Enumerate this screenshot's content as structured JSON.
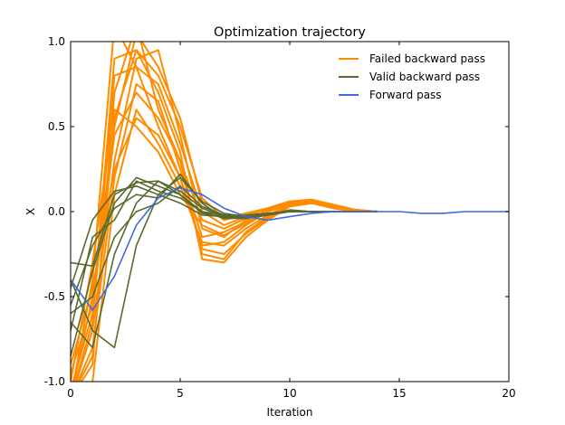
{
  "chart_data": {
    "type": "line",
    "title": "Optimization trajectory",
    "xlabel": "Iteration",
    "ylabel": "X",
    "xlim": [
      0,
      20
    ],
    "ylim": [
      -1.0,
      1.0
    ],
    "xticks": [
      0,
      5,
      10,
      15,
      20
    ],
    "yticks": [
      -1.0,
      -0.5,
      0.0,
      0.5,
      1.0
    ],
    "xtick_labels": [
      "0",
      "5",
      "10",
      "15",
      "20"
    ],
    "ytick_labels": [
      "-1.0",
      "-0.5",
      "0.0",
      "0.5",
      "1.0"
    ],
    "grid": false,
    "legend_position": "top-right",
    "legend": [
      {
        "label": "Failed backward pass",
        "color": "#ff8c00"
      },
      {
        "label": "Valid backward pass",
        "color": "#556b2f"
      },
      {
        "label": "Forward pass",
        "color": "#4169e1"
      }
    ],
    "groups": [
      {
        "name": "Failed backward pass",
        "color": "#ff8c00",
        "series": [
          {
            "x": [
              0,
              1,
              2,
              3,
              4,
              5,
              6,
              7,
              8,
              9,
              10,
              11,
              12,
              13,
              14
            ],
            "values": [
              -1.1,
              -0.5,
              0.5,
              1.05,
              0.85,
              0.55,
              0.05,
              -0.05,
              -0.02,
              0.01,
              0.06,
              0.07,
              0.04,
              0.01,
              0.0
            ]
          },
          {
            "x": [
              0,
              1,
              2,
              3,
              4,
              5,
              6,
              7,
              8,
              9,
              10,
              11,
              12,
              13,
              14
            ],
            "values": [
              -1.1,
              -0.7,
              0.3,
              0.9,
              0.95,
              0.45,
              -0.1,
              -0.15,
              -0.05,
              0.0,
              0.05,
              0.07,
              0.03,
              0.01,
              0.0
            ]
          },
          {
            "x": [
              0,
              1,
              2,
              3,
              4,
              5,
              6,
              7,
              8,
              9,
              10,
              11,
              12,
              13,
              14
            ],
            "values": [
              -1.1,
              -0.9,
              0.7,
              1.1,
              0.6,
              0.3,
              -0.25,
              -0.28,
              -0.12,
              -0.03,
              0.04,
              0.06,
              0.03,
              0.01,
              0.0
            ]
          },
          {
            "x": [
              0,
              1,
              2,
              3,
              4,
              5,
              6,
              7,
              8,
              9,
              10,
              11,
              12,
              13,
              14
            ],
            "values": [
              -1.05,
              -0.6,
              0.9,
              0.95,
              0.7,
              0.35,
              -0.28,
              -0.3,
              -0.15,
              -0.05,
              0.03,
              0.05,
              0.02,
              0.0,
              0.0
            ]
          },
          {
            "x": [
              0,
              1,
              2,
              3,
              4,
              5,
              6,
              7,
              8,
              9,
              10,
              11,
              12,
              13,
              14
            ],
            "values": [
              -1.1,
              -0.4,
              1.1,
              0.85,
              0.5,
              0.2,
              -0.2,
              -0.18,
              -0.08,
              0.0,
              0.05,
              0.07,
              0.04,
              0.01,
              0.0
            ]
          },
          {
            "x": [
              0,
              1,
              2,
              3,
              4,
              5,
              6,
              7,
              8,
              9,
              10,
              11,
              12,
              13,
              14
            ],
            "values": [
              -1.1,
              -0.8,
              0.2,
              0.75,
              0.65,
              0.25,
              -0.15,
              -0.12,
              -0.06,
              0.01,
              0.06,
              0.06,
              0.03,
              0.01,
              0.0
            ]
          },
          {
            "x": [
              0,
              1,
              2,
              3,
              4,
              5,
              6,
              7,
              8,
              9,
              10,
              11,
              12,
              13,
              14
            ],
            "values": [
              -0.95,
              -0.55,
              0.45,
              0.7,
              0.55,
              0.3,
              -0.05,
              -0.1,
              -0.04,
              0.02,
              0.05,
              0.06,
              0.03,
              0.01,
              0.0
            ]
          },
          {
            "x": [
              0,
              1,
              2,
              3,
              4,
              5,
              6,
              7,
              8,
              9,
              10,
              11,
              12,
              13,
              14
            ],
            "values": [
              -1.1,
              -1.0,
              0.1,
              0.6,
              0.4,
              0.15,
              -0.18,
              -0.2,
              -0.1,
              -0.02,
              0.04,
              0.05,
              0.02,
              0.0,
              0.0
            ]
          },
          {
            "x": [
              0,
              1,
              2,
              3,
              4,
              5,
              6,
              7,
              8,
              9,
              10,
              11,
              12,
              13,
              14
            ],
            "values": [
              -1.0,
              -0.3,
              0.6,
              0.5,
              0.35,
              0.1,
              -0.08,
              -0.14,
              -0.07,
              0.0,
              0.04,
              0.05,
              0.02,
              0.0,
              0.0
            ]
          },
          {
            "x": [
              0,
              1,
              2,
              3,
              4,
              5,
              6,
              7,
              8,
              9,
              10,
              11,
              12,
              13,
              14
            ],
            "values": [
              -1.1,
              -0.65,
              0.8,
              0.85,
              0.75,
              0.4,
              0.0,
              -0.08,
              -0.03,
              0.02,
              0.06,
              0.06,
              0.03,
              0.01,
              0.0
            ]
          },
          {
            "x": [
              0,
              1,
              2,
              3,
              4,
              5,
              6,
              7,
              8,
              9,
              10,
              11,
              12,
              13,
              14
            ],
            "values": [
              -0.9,
              -0.45,
              0.25,
              0.55,
              0.45,
              0.2,
              -0.22,
              -0.25,
              -0.13,
              -0.04,
              0.03,
              0.05,
              0.02,
              0.0,
              0.0
            ]
          },
          {
            "x": [
              0,
              1,
              2,
              3,
              4,
              5,
              6,
              7,
              8,
              9,
              10,
              11,
              12,
              13,
              14
            ],
            "values": [
              -1.1,
              -0.85,
              0.55,
              0.95,
              0.8,
              0.5,
              0.08,
              -0.04,
              -0.01,
              0.02,
              0.06,
              0.07,
              0.04,
              0.01,
              0.0
            ]
          }
        ]
      },
      {
        "name": "Valid backward pass",
        "color": "#556b2f",
        "series": [
          {
            "x": [
              0,
              1,
              2,
              3,
              4,
              5,
              6,
              7,
              8,
              9,
              10,
              11,
              12,
              13,
              14
            ],
            "values": [
              -0.3,
              -0.32,
              0.1,
              0.17,
              0.18,
              0.1,
              0.0,
              -0.04,
              -0.03,
              -0.01,
              0.0,
              0.0,
              0.0,
              0.0,
              0.0
            ]
          },
          {
            "x": [
              0,
              1,
              2,
              3,
              4,
              5,
              6,
              7,
              8,
              9,
              10,
              11,
              12,
              13,
              14
            ],
            "values": [
              -0.45,
              -0.05,
              0.12,
              0.15,
              0.1,
              0.05,
              -0.02,
              -0.03,
              -0.02,
              -0.01,
              0.0,
              0.0,
              0.0,
              0.0,
              0.0
            ]
          },
          {
            "x": [
              0,
              1,
              2,
              3,
              4,
              5,
              6,
              7,
              8,
              9,
              10,
              11,
              12,
              13,
              14
            ],
            "values": [
              -0.55,
              -0.2,
              0.02,
              0.1,
              0.08,
              0.22,
              0.05,
              -0.04,
              -0.04,
              -0.02,
              0.01,
              0.0,
              0.0,
              0.0,
              0.0
            ]
          },
          {
            "x": [
              0,
              1,
              2,
              3,
              4,
              5,
              6,
              7,
              8,
              9,
              10,
              11,
              12,
              13,
              14
            ],
            "values": [
              -0.65,
              -0.8,
              -0.25,
              0.05,
              0.18,
              0.12,
              0.02,
              -0.03,
              -0.04,
              -0.02,
              0.0,
              0.0,
              0.0,
              0.0,
              0.0
            ]
          },
          {
            "x": [
              0,
              1,
              2,
              3,
              4,
              5,
              6,
              7,
              8,
              9,
              10,
              11,
              12,
              13,
              14
            ],
            "values": [
              -0.7,
              -0.15,
              -0.05,
              0.18,
              0.12,
              0.08,
              0.0,
              -0.02,
              -0.03,
              -0.01,
              0.0,
              0.0,
              0.0,
              0.0,
              0.0
            ]
          },
          {
            "x": [
              0,
              1,
              2,
              3,
              4,
              5,
              6,
              7,
              8,
              9,
              10,
              11,
              12,
              13,
              14
            ],
            "values": [
              -0.85,
              -0.35,
              0.05,
              0.2,
              0.15,
              0.1,
              -0.01,
              -0.03,
              -0.04,
              -0.02,
              0.0,
              0.0,
              0.0,
              0.0,
              0.0
            ]
          },
          {
            "x": [
              0,
              1,
              2,
              3,
              4,
              5,
              6,
              7,
              8,
              9,
              10,
              11,
              12,
              13,
              14
            ],
            "values": [
              -0.6,
              -0.5,
              -0.15,
              0.0,
              0.05,
              0.15,
              0.03,
              -0.02,
              -0.03,
              -0.01,
              0.0,
              0.0,
              0.0,
              0.0,
              0.0
            ]
          },
          {
            "x": [
              0,
              1,
              2,
              3,
              4,
              5,
              6,
              7,
              8,
              9,
              10,
              11,
              12,
              13,
              14
            ],
            "values": [
              -0.4,
              -0.7,
              -0.8,
              -0.2,
              0.1,
              0.2,
              0.06,
              -0.01,
              -0.03,
              -0.02,
              0.0,
              0.0,
              0.0,
              0.0,
              0.0
            ]
          }
        ]
      },
      {
        "name": "Forward pass",
        "color": "#4169e1",
        "series": [
          {
            "x": [
              0,
              1,
              2,
              3,
              4,
              5,
              6,
              7,
              8,
              9,
              10,
              11,
              12,
              13,
              14,
              15,
              16,
              17,
              18,
              19,
              20
            ],
            "values": [
              -0.4,
              -0.58,
              -0.38,
              -0.08,
              0.08,
              0.14,
              0.1,
              0.02,
              -0.03,
              -0.05,
              -0.03,
              -0.01,
              0.0,
              0.0,
              0.0,
              0.0,
              -0.01,
              -0.01,
              0.0,
              0.0,
              0.0
            ]
          }
        ]
      }
    ]
  }
}
